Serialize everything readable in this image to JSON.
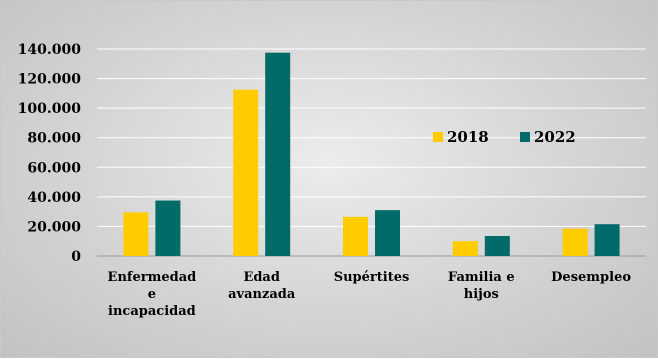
{
  "chart_data": {
    "type": "bar",
    "categories": [
      [
        "Enfermedad",
        "e",
        "incapacidad"
      ],
      [
        "Edad",
        "avanzada"
      ],
      [
        "Supértites"
      ],
      [
        "Familia e",
        "hijos"
      ],
      [
        "Desempleo"
      ]
    ],
    "series": [
      {
        "name": "2018",
        "color": "#FFCC00",
        "values": [
          29500,
          112500,
          26500,
          10000,
          18500
        ]
      },
      {
        "name": "2022",
        "color": "#006B68",
        "values": [
          37500,
          137500,
          31000,
          13500,
          21500
        ]
      }
    ],
    "y_ticks": [
      "0",
      "20.000",
      "40.000",
      "60.000",
      "80.000",
      "100.000",
      "120.000",
      "140.000"
    ],
    "ylim": [
      0,
      140000
    ],
    "grid": true,
    "legend_position": "right-middle"
  }
}
